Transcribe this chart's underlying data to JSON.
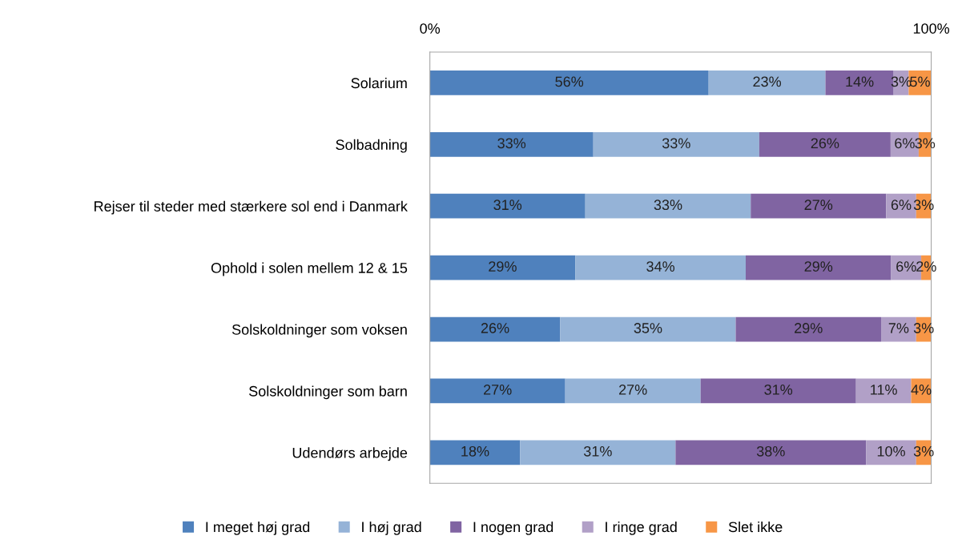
{
  "chart_data": {
    "type": "bar",
    "orientation": "horizontal",
    "stacked": true,
    "categories": [
      "Solarium",
      "Solbadning",
      "Rejser til steder med stærkere sol end i Danmark",
      "Ophold i solen mellem 12 & 15",
      "Solskoldninger som voksen",
      "Solskoldninger som barn",
      "Udendørs arbejde"
    ],
    "series": [
      {
        "name": "I meget høj grad",
        "color": "#4f81bd",
        "values": [
          55.6,
          32.6,
          31,
          29,
          26,
          27,
          18
        ],
        "value_labels": [
          "56%",
          "33%",
          "31%",
          "29%",
          "26%",
          "27%",
          "18%"
        ]
      },
      {
        "name": "I høj grad",
        "color": "#95b3d7",
        "values": [
          23.3,
          33.1,
          33,
          34,
          35,
          27,
          31
        ],
        "value_labels": [
          "23%",
          "33%",
          "33%",
          "34%",
          "35%",
          "27%",
          "31%"
        ]
      },
      {
        "name": "I nogen grad",
        "color": "#8064a2",
        "values": [
          13.6,
          26.2,
          27,
          29,
          29,
          31,
          38
        ],
        "value_labels": [
          "14%",
          "26%",
          "27%",
          "29%",
          "29%",
          "31%",
          "38%"
        ]
      },
      {
        "name": "I ringe grad",
        "color": "#b1a0c7",
        "values": [
          3,
          5.6,
          6,
          6,
          7,
          11,
          10
        ],
        "value_labels": [
          "3%",
          "6%",
          "6%",
          "6%",
          "7%",
          "11%",
          "10%"
        ]
      },
      {
        "name": "Slet ikke",
        "color": "#f79646",
        "values": [
          4.5,
          2.5,
          3,
          2,
          3,
          4,
          3
        ],
        "value_labels": [
          "5%",
          "3%",
          "3%",
          "2%",
          "3%",
          "4%",
          "3%"
        ]
      }
    ],
    "xlim": [
      0,
      100
    ],
    "xticks": [
      {
        "value": 0,
        "label": "0%"
      },
      {
        "value": 100,
        "label": "100%"
      }
    ],
    "grid": false,
    "legend": "bottom"
  }
}
